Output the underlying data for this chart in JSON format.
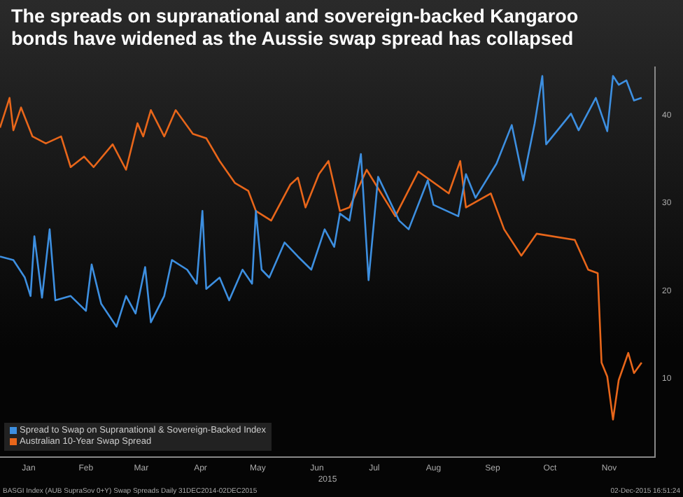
{
  "chart_data": {
    "type": "line",
    "title": "The spreads on supranational and sovereign-backed Kangaroo bonds have widened as the Aussie swap spread has collapsed",
    "xlabel": "2015",
    "annotations": [
      "BASGI Index (AUB SupraSov 0+Y) Swap Spreads Daily 31DEC2014-02DEC2015",
      "02-Dec-2015 16:51:24"
    ],
    "xlim": [
      "2014-12-31",
      "2015-12-09"
    ],
    "xticks": [
      {
        "value": "2015-01-15",
        "label": "Jan"
      },
      {
        "value": "2015-02-14",
        "label": "Feb"
      },
      {
        "value": "2015-03-15",
        "label": "Mar"
      },
      {
        "value": "2015-04-15",
        "label": "Apr"
      },
      {
        "value": "2015-05-15",
        "label": "May"
      },
      {
        "value": "2015-06-15",
        "label": "Jun"
      },
      {
        "value": "2015-07-15",
        "label": "Jul"
      },
      {
        "value": "2015-08-15",
        "label": "Aug"
      },
      {
        "value": "2015-09-15",
        "label": "Sep"
      },
      {
        "value": "2015-10-15",
        "label": "Oct"
      },
      {
        "value": "2015-11-15",
        "label": "Nov"
      }
    ],
    "ylim": [
      1,
      45.5
    ],
    "yticks": [
      10,
      20,
      30,
      40
    ],
    "legend": "bottom left",
    "grid": false,
    "line_style": "solid",
    "marker": "none",
    "series": [
      {
        "name": "Spread to Swap on Supranational & Sovereign-Backed Index",
        "color": "#3d8fe0",
        "x": [
          "2014-12-31",
          "2015-01-07",
          "2015-01-13",
          "2015-01-16",
          "2015-01-18",
          "2015-01-22",
          "2015-01-26",
          "2015-01-29",
          "2015-02-06",
          "2015-02-14",
          "2015-02-17",
          "2015-02-22",
          "2015-03-02",
          "2015-03-07",
          "2015-03-12",
          "2015-03-17",
          "2015-03-20",
          "2015-03-27",
          "2015-03-31",
          "2015-04-08",
          "2015-04-13",
          "2015-04-16",
          "2015-04-18",
          "2015-04-25",
          "2015-04-30",
          "2015-05-07",
          "2015-05-12",
          "2015-05-14",
          "2015-05-17",
          "2015-05-21",
          "2015-05-29",
          "2015-06-05",
          "2015-06-12",
          "2015-06-19",
          "2015-06-24",
          "2015-06-27",
          "2015-07-02",
          "2015-07-08",
          "2015-07-12",
          "2015-07-17",
          "2015-07-28",
          "2015-08-02",
          "2015-08-12",
          "2015-08-15",
          "2015-08-28",
          "2015-09-01",
          "2015-09-06",
          "2015-09-17",
          "2015-09-25",
          "2015-10-01",
          "2015-10-07",
          "2015-10-11",
          "2015-10-13",
          "2015-10-26",
          "2015-10-30",
          "2015-11-08",
          "2015-11-14",
          "2015-11-17",
          "2015-11-20",
          "2015-11-24",
          "2015-11-28",
          "2015-12-02"
        ],
        "values": [
          23.9,
          23.5,
          21.5,
          19.4,
          26.2,
          19.2,
          27,
          18.9,
          19.4,
          17.7,
          23,
          18.5,
          15.9,
          19.4,
          17.4,
          22.7,
          16.4,
          19.4,
          23.5,
          22.4,
          20.8,
          29.1,
          20.2,
          21.5,
          18.9,
          22.4,
          20.8,
          29.1,
          22.4,
          21.5,
          25.5,
          23.9,
          22.4,
          27,
          25,
          28.8,
          28,
          35.6,
          21.2,
          33,
          28,
          27,
          32.6,
          29.8,
          28.5,
          33.3,
          30.6,
          34.5,
          38.9,
          32.6,
          39.1,
          44.5,
          36.7,
          40.2,
          38.3,
          42,
          38.2,
          44.5,
          43.5,
          44,
          41.7,
          42
        ]
      },
      {
        "name": "Australian 10-Year Swap Spread",
        "color": "#e8661a",
        "x": [
          "2014-12-31",
          "2015-01-05",
          "2015-01-07",
          "2015-01-11",
          "2015-01-17",
          "2015-01-24",
          "2015-02-01",
          "2015-02-06",
          "2015-02-13",
          "2015-02-18",
          "2015-02-28",
          "2015-03-07",
          "2015-03-13",
          "2015-03-16",
          "2015-03-20",
          "2015-03-27",
          "2015-04-02",
          "2015-04-11",
          "2015-04-18",
          "2015-04-25",
          "2015-05-03",
          "2015-05-10",
          "2015-05-14",
          "2015-05-22",
          "2015-06-01",
          "2015-06-05",
          "2015-06-09",
          "2015-06-16",
          "2015-06-21",
          "2015-06-27",
          "2015-07-02",
          "2015-07-11",
          "2015-07-26",
          "2015-08-07",
          "2015-08-23",
          "2015-08-29",
          "2015-09-01",
          "2015-09-14",
          "2015-09-21",
          "2015-09-30",
          "2015-10-08",
          "2015-10-28",
          "2015-11-04",
          "2015-11-09",
          "2015-11-11",
          "2015-11-14",
          "2015-11-17",
          "2015-11-20",
          "2015-11-25",
          "2015-11-28",
          "2015-12-02"
        ],
        "values": [
          38.6,
          42,
          38.3,
          40.9,
          37.6,
          36.8,
          37.6,
          34.1,
          35.3,
          34.1,
          36.7,
          33.8,
          39.1,
          37.6,
          40.6,
          37.6,
          40.6,
          37.9,
          37.4,
          34.8,
          32.3,
          31.4,
          29.1,
          28,
          32.1,
          32.9,
          29.5,
          33.3,
          34.8,
          29.1,
          29.5,
          33.8,
          28.5,
          33.6,
          31.1,
          34.8,
          29.5,
          31.1,
          27,
          24,
          26.5,
          25.8,
          22.4,
          22,
          11.8,
          10.2,
          5.3,
          9.8,
          12.9,
          10.6,
          11.8
        ]
      }
    ]
  }
}
